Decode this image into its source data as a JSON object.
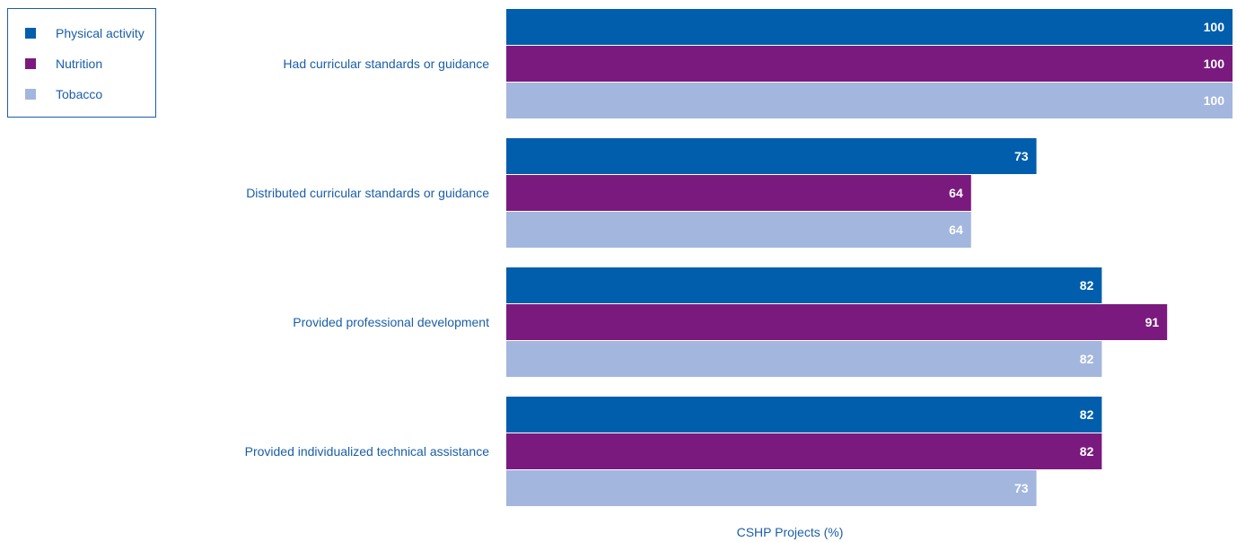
{
  "chart_data": {
    "type": "bar",
    "orientation": "horizontal",
    "categories": [
      "Had curricular standards or guidance",
      "Distributed curricular standards or guidance",
      "Provided professional development",
      "Provided individualized technical assistance"
    ],
    "series": [
      {
        "name": "Physical activity",
        "color": "#005eac",
        "values": [
          100,
          73,
          82,
          82
        ]
      },
      {
        "name": "Nutrition",
        "color": "#7a1a7e",
        "values": [
          100,
          64,
          91,
          82
        ]
      },
      {
        "name": "Tobacco",
        "color": "#a3b6de",
        "values": [
          100,
          64,
          82,
          73
        ]
      }
    ],
    "title": "",
    "xlabel": "CSHP Projects (%)",
    "ylabel": "",
    "xlim": [
      0,
      100
    ],
    "grid": false,
    "legend": {
      "placement": "top-left"
    },
    "label_color": "#1a5ea8",
    "value_label_color": "#ffffff"
  }
}
